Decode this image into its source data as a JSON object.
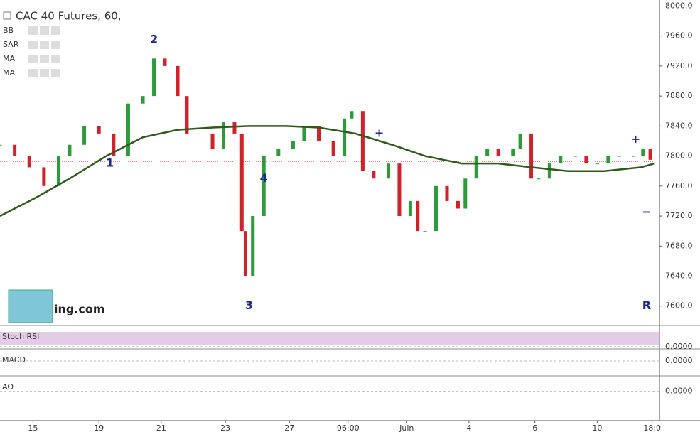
{
  "chart_data": {
    "type": "candlestick",
    "title": "CAC 40 Futures, 60,",
    "indicators": [
      "BB",
      "SAR",
      "MA",
      "MA"
    ],
    "xlim": [
      0,
      180
    ],
    "ylim": [
      7577,
      8008
    ],
    "yticks": [
      {
        "value": 8000,
        "label": "8000.0"
      },
      {
        "value": 7960,
        "label": "7960.0"
      },
      {
        "value": 7920,
        "label": "7920.0"
      },
      {
        "value": 7880,
        "label": "7880.0"
      },
      {
        "value": 7840,
        "label": "7840.0"
      },
      {
        "value": 7800,
        "label": "7800.0"
      },
      {
        "value": 7760,
        "label": "7760.0"
      },
      {
        "value": 7720,
        "label": "7720.0"
      },
      {
        "value": 7680,
        "label": "7680.0"
      },
      {
        "value": 7640,
        "label": "7640.0"
      },
      {
        "value": 7600,
        "label": "7600.0"
      }
    ],
    "xticks": [
      {
        "value": 9,
        "label": "15"
      },
      {
        "value": 27,
        "label": "19"
      },
      {
        "value": 44,
        "label": "21"
      },
      {
        "value": 61.5,
        "label": "23"
      },
      {
        "value": 79,
        "label": "27"
      },
      {
        "value": 95,
        "label": "06:00"
      },
      {
        "value": 111,
        "label": "Juin"
      },
      {
        "value": 128,
        "label": "4"
      },
      {
        "value": 146,
        "label": "6"
      },
      {
        "value": 163,
        "label": "10"
      },
      {
        "value": 178,
        "label": "18:0"
      }
    ],
    "series": [
      {
        "name": "CAC 40 Futures",
        "up_color": "#2e9b3a",
        "down_color": "#d0222a",
        "x": [
          0,
          4,
          8,
          12,
          16,
          19,
          23,
          27,
          31,
          35,
          39,
          42,
          45,
          48.5,
          51,
          54,
          58,
          61,
          64,
          66,
          67,
          69,
          72,
          76,
          80,
          83,
          87,
          91,
          94,
          96,
          99,
          102,
          106,
          109,
          112,
          114,
          116,
          119,
          122,
          125,
          127,
          130,
          133,
          136,
          140,
          142,
          145,
          147,
          150,
          153,
          157,
          160,
          163,
          166,
          169,
          173,
          175.5,
          177.5
        ],
        "values": [
          7815,
          7800,
          7785,
          7760,
          7800,
          7815,
          7840,
          7830,
          7800,
          7870,
          7880,
          7930,
          7920,
          7880,
          7830,
          7830,
          7810,
          7845,
          7830,
          7700,
          7640,
          7720,
          7800,
          7810,
          7820,
          7840,
          7820,
          7800,
          7850,
          7860,
          7780,
          7770,
          7790,
          7720,
          7740,
          7700,
          7700,
          7760,
          7740,
          7730,
          7770,
          7800,
          7810,
          7800,
          7810,
          7830,
          7770,
          7770,
          7790,
          7800,
          7800,
          7790,
          7790,
          7800,
          7800,
          7800,
          7810,
          7795
        ]
      },
      {
        "name": "MA",
        "color": "#2f5a1c",
        "x": [
          0,
          10,
          19,
          29,
          39,
          48.5,
          58,
          68,
          78,
          87,
          97,
          107,
          116,
          126,
          136,
          145,
          155,
          165,
          175,
          178.5
        ],
        "values": [
          7720,
          7745,
          7770,
          7800,
          7825,
          7835,
          7838,
          7840,
          7840,
          7838,
          7830,
          7815,
          7800,
          7790,
          7790,
          7785,
          7780,
          7780,
          7785,
          7790
        ]
      }
    ],
    "price_line": 7793,
    "annotations": [
      {
        "text": "1",
        "x": 30,
        "y": 7790
      },
      {
        "text": "2",
        "x": 42,
        "y": 7955
      },
      {
        "text": "3",
        "x": 68,
        "y": 7600
      },
      {
        "text": "4",
        "x": 72,
        "y": 7770
      },
      {
        "text": "+",
        "x": 103.5,
        "y": 7830
      },
      {
        "text": "−",
        "x": 176.5,
        "y": 7725
      },
      {
        "text": "+",
        "x": 173.5,
        "y": 7822
      },
      {
        "text": "R",
        "x": 176.5,
        "y": 7600
      }
    ],
    "watermark": "ing.com",
    "panels": [
      {
        "name": "Stoch RSI",
        "ylim": [
          -8,
          100
        ],
        "yticks": [
          {
            "value": 0,
            "label": "0.0000"
          }
        ]
      },
      {
        "name": "MACD",
        "ylim": [
          -40,
          30
        ],
        "yticks": [
          {
            "value": 0,
            "label": "0.0000"
          }
        ]
      },
      {
        "name": "AO",
        "ylim": [
          -120,
          60
        ],
        "yticks": [
          {
            "value": 0,
            "label": "0.0000"
          }
        ]
      }
    ]
  }
}
